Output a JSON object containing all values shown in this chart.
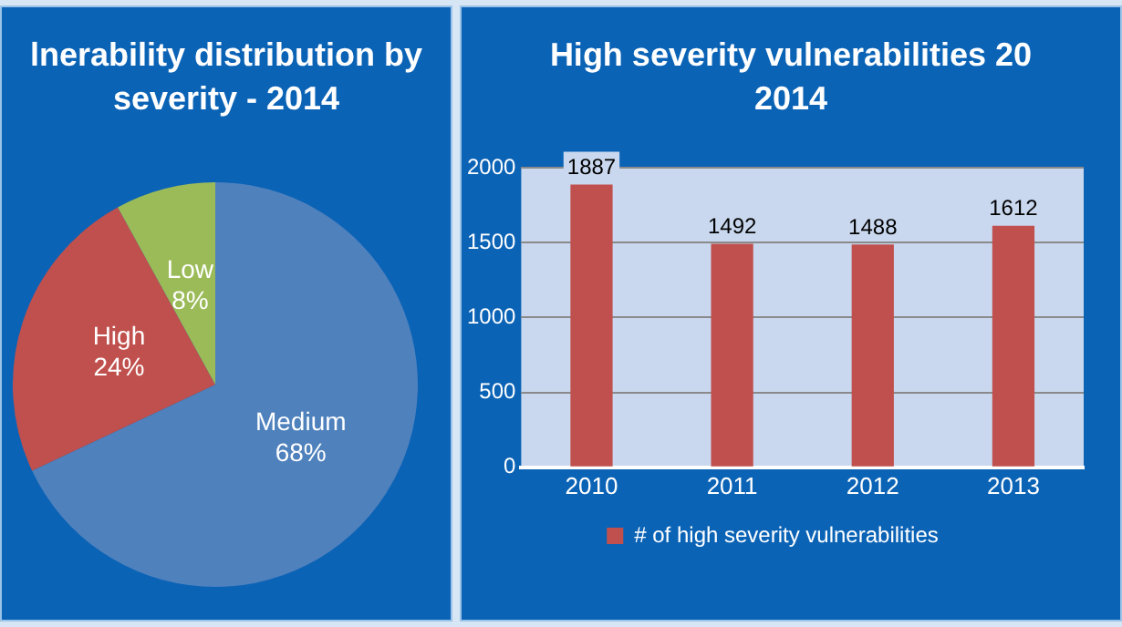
{
  "chart_data": [
    {
      "type": "pie",
      "title": "lnerability distribution by severity - 2014",
      "categories": [
        "Medium",
        "High",
        "Low"
      ],
      "values": [
        68,
        24,
        8
      ],
      "value_labels": [
        "68%",
        "24%",
        "8%"
      ],
      "colors": [
        "#4f81bd",
        "#c0504d",
        "#9bbb59"
      ]
    },
    {
      "type": "bar",
      "title": "High severity vulnerabilities 20",
      "subtitle": "2014",
      "categories": [
        "2010",
        "2011",
        "2012",
        "2013"
      ],
      "series": [
        {
          "name": "# of high severity vulnerabilities",
          "color": "#c0504d",
          "values": [
            1887,
            1492,
            1488,
            1612
          ]
        }
      ],
      "ylim": [
        0,
        2000
      ],
      "yticks": [
        0,
        500,
        1000,
        1500,
        2000
      ],
      "grid": "y",
      "legend": "bottom",
      "data_labels": true
    }
  ]
}
